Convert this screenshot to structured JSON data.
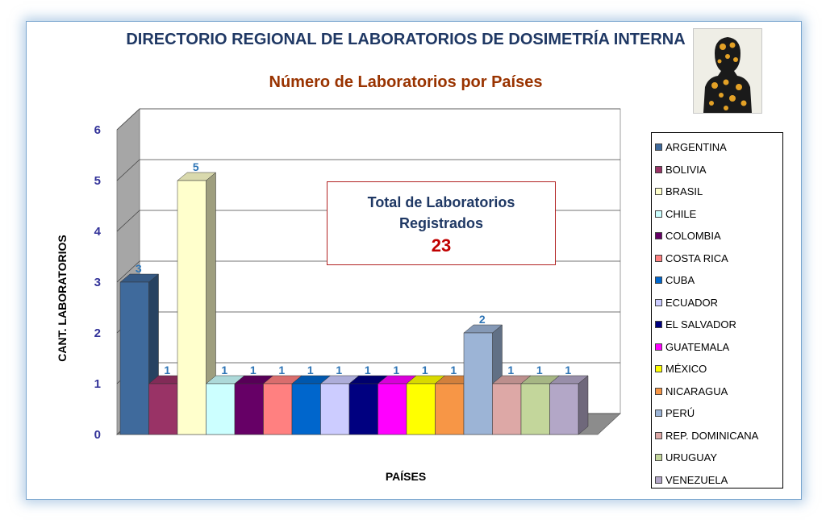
{
  "header": {
    "title": "DIRECTORIO REGIONAL DE LABORATORIOS DE DOSIMETRÍA INTERNA",
    "subtitle": "Número de Laboratorios por Países"
  },
  "total_box": {
    "label": "Total de Laboratorios Registrados",
    "value": "23"
  },
  "logo": {
    "icon": "human-body-scan-icon"
  },
  "chart_data": {
    "type": "bar",
    "title": "DIRECTORIO REGIONAL DE LABORATORIOS DE DOSIMETRÍA INTERNA",
    "subtitle": "Número de Laboratorios por Países",
    "xlabel": "PAÍSES",
    "ylabel": "CANT. LABORATORIOS",
    "ylim": [
      0,
      6
    ],
    "yticks": [
      "0",
      "1",
      "2",
      "3",
      "4",
      "5",
      "6"
    ],
    "grid": true,
    "three_d": true,
    "legend_position": "right",
    "categories": [
      "ARGENTINA",
      "BOLIVIA",
      "BRASIL",
      "CHILE",
      "COLOMBIA",
      "COSTA RICA",
      "CUBA",
      "ECUADOR",
      "EL SALVADOR",
      "GUATEMALA",
      "MÉXICO",
      "NICARAGUA",
      "PERÚ",
      "REP. DOMINICANA",
      "URUGUAY",
      "VENEZUELA"
    ],
    "values": [
      3,
      1,
      5,
      1,
      1,
      1,
      1,
      1,
      1,
      1,
      1,
      1,
      2,
      1,
      1,
      1
    ],
    "data_labels": [
      "3",
      "1",
      "5",
      "1",
      "1",
      "1",
      "1",
      "1",
      "1",
      "1",
      "1",
      "1",
      "2",
      "1",
      "1",
      "1"
    ],
    "colors": [
      "#3f6a9c",
      "#993366",
      "#ffffcc",
      "#ccffff",
      "#660066",
      "#ff8080",
      "#0066cc",
      "#ccccff",
      "#000080",
      "#ff00ff",
      "#ffff00",
      "#f79646",
      "#9cb4d6",
      "#dda8a6",
      "#c3d69b",
      "#b3a7c7"
    ]
  }
}
